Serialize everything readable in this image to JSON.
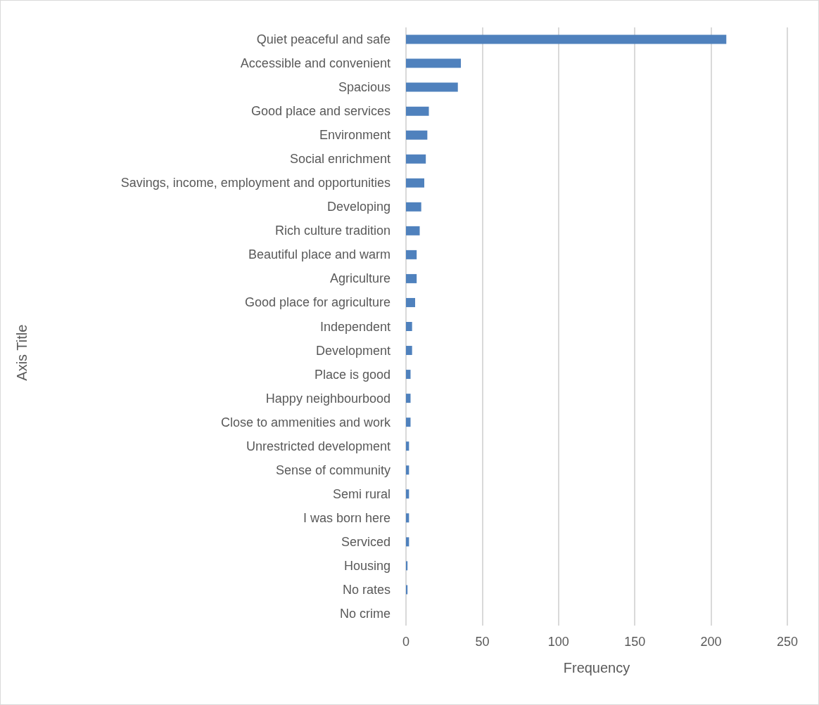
{
  "chart_data": {
    "type": "bar",
    "orientation": "horizontal",
    "xlabel": "Frequency",
    "annotations": [
      "Axis Title"
    ],
    "categories": [
      "Quiet peaceful and safe",
      "Accessible and convenient",
      "Spacious",
      "Good place and services",
      "Environment",
      "Social enrichment",
      "Savings, income, employment and opportunities",
      "Developing",
      "Rich culture tradition",
      "Beautiful place and warm",
      "Agriculture",
      "Good place for agriculture",
      "Independent",
      "Development",
      "Place is good",
      "Happy neighbourbood",
      "Close to ammenities and work",
      "Unrestricted development",
      "Sense of community",
      "Semi rural",
      "I was born here",
      "Serviced",
      "Housing",
      "No rates",
      "No crime"
    ],
    "values": [
      210,
      36,
      34,
      15,
      14,
      13,
      12,
      10,
      9,
      7,
      7,
      6,
      4,
      4,
      3,
      3,
      3,
      2,
      2,
      2,
      2,
      2,
      1,
      1,
      0
    ],
    "color": "#4f81bd",
    "xlim": [
      0,
      250
    ],
    "xticks": [
      0,
      50,
      100,
      150,
      200,
      250
    ],
    "grid": "x"
  }
}
